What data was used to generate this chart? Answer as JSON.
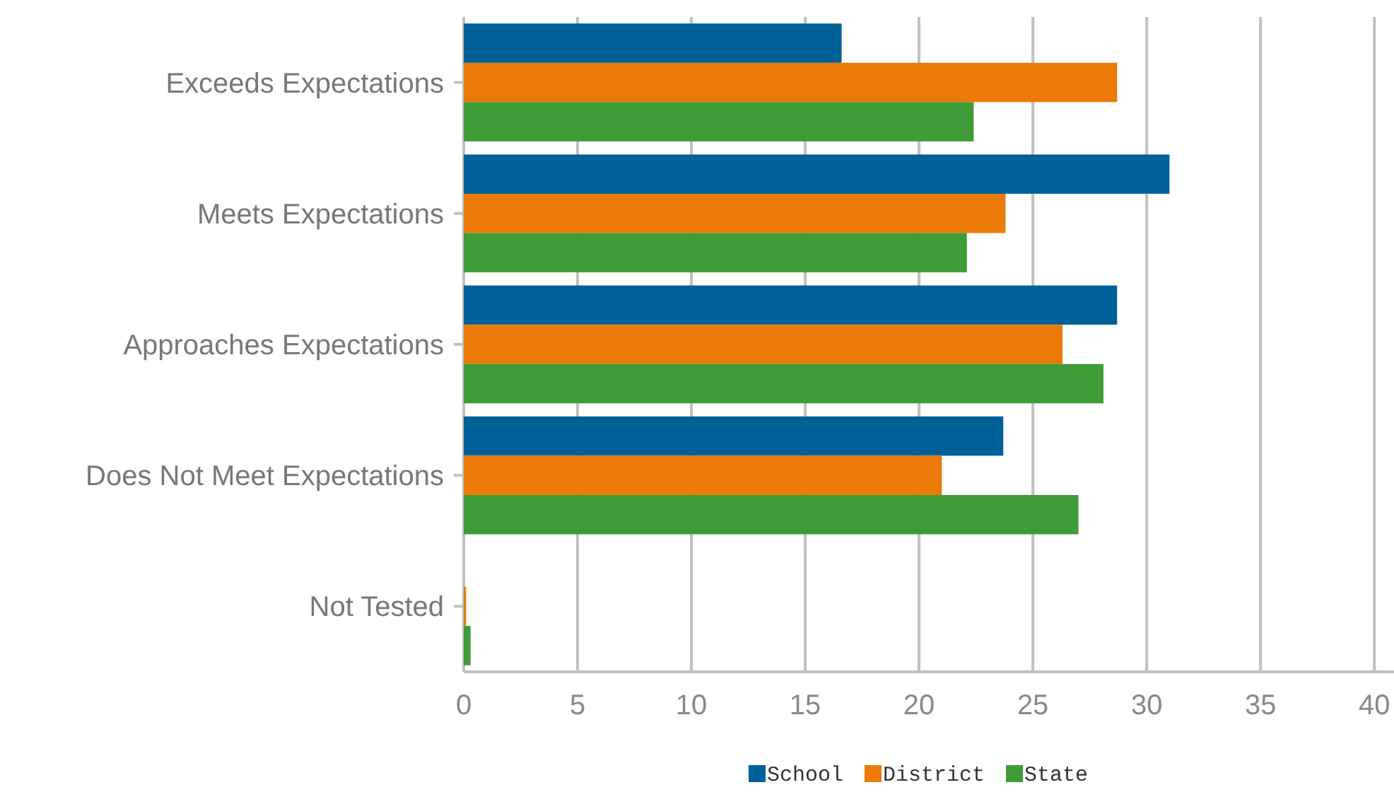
{
  "chart_data": {
    "type": "bar",
    "orientation": "horizontal",
    "categories": [
      "Exceeds Expectations",
      "Meets Expectations",
      "Approaches Expectations",
      "Does Not Meet Expectations",
      "Not Tested"
    ],
    "series": [
      {
        "name": "School",
        "color": "#006199",
        "values": [
          16.6,
          31.0,
          28.7,
          23.7,
          0
        ]
      },
      {
        "name": "District",
        "color": "#eb7a07",
        "values": [
          28.7,
          23.8,
          26.3,
          21.0,
          0.1
        ]
      },
      {
        "name": "State",
        "color": "#3f9b35",
        "values": [
          22.4,
          22.1,
          28.1,
          27.0,
          0.3
        ]
      }
    ],
    "xlim": [
      0,
      40.8
    ],
    "xticks": [
      0,
      5,
      10,
      15,
      20,
      25,
      30,
      35,
      40
    ],
    "grid": "x",
    "legend": "bottom"
  }
}
